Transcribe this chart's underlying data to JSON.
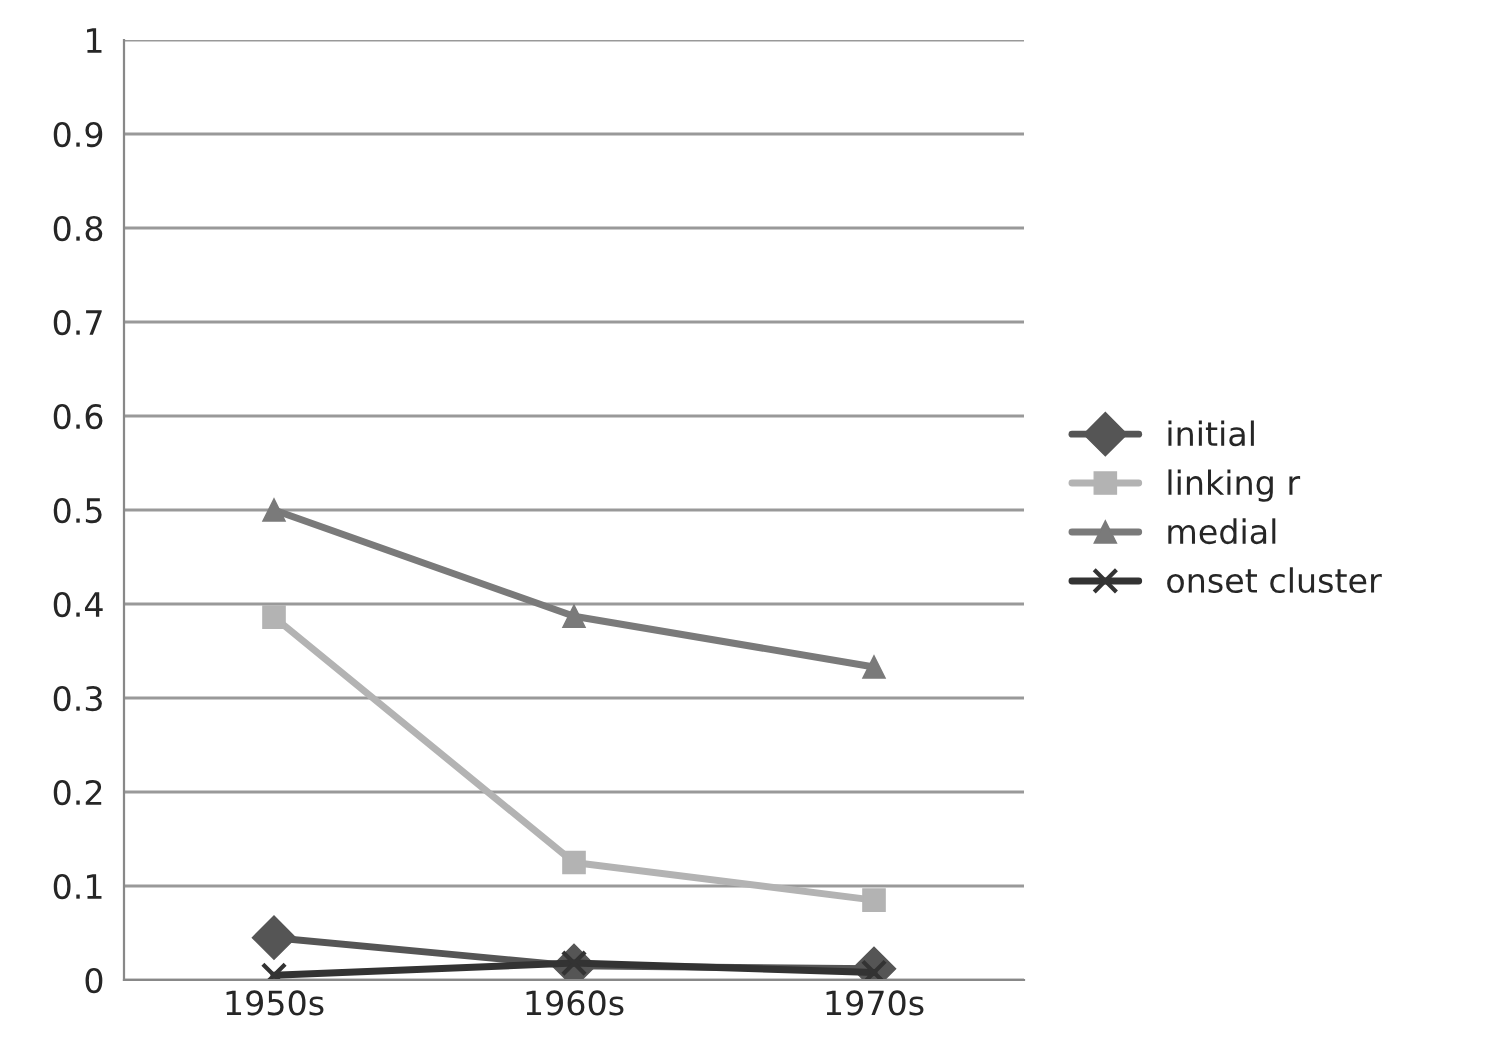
{
  "chart_data": {
    "type": "line",
    "categories": [
      "1950s",
      "1960s",
      "1970s"
    ],
    "series": [
      {
        "name": "initial",
        "color": "#555555",
        "marker": "diamond",
        "values": [
          0.045,
          0.015,
          0.012
        ]
      },
      {
        "name": "linking r",
        "color": "#b3b3b3",
        "marker": "square",
        "values": [
          0.386,
          0.125,
          0.085
        ]
      },
      {
        "name": "medial",
        "color": "#7a7a7a",
        "marker": "triangle",
        "values": [
          0.5,
          0.387,
          0.333
        ]
      },
      {
        "name": "onset cluster",
        "color": "#333333",
        "marker": "cross",
        "values": [
          0.005,
          0.018,
          0.008
        ]
      }
    ],
    "ylim": [
      0,
      1
    ],
    "yticks": [
      0,
      0.1,
      0.2,
      0.3,
      0.4,
      0.5,
      0.6,
      0.7,
      0.8,
      0.9,
      1
    ],
    "grid": "y",
    "legend": "right"
  }
}
